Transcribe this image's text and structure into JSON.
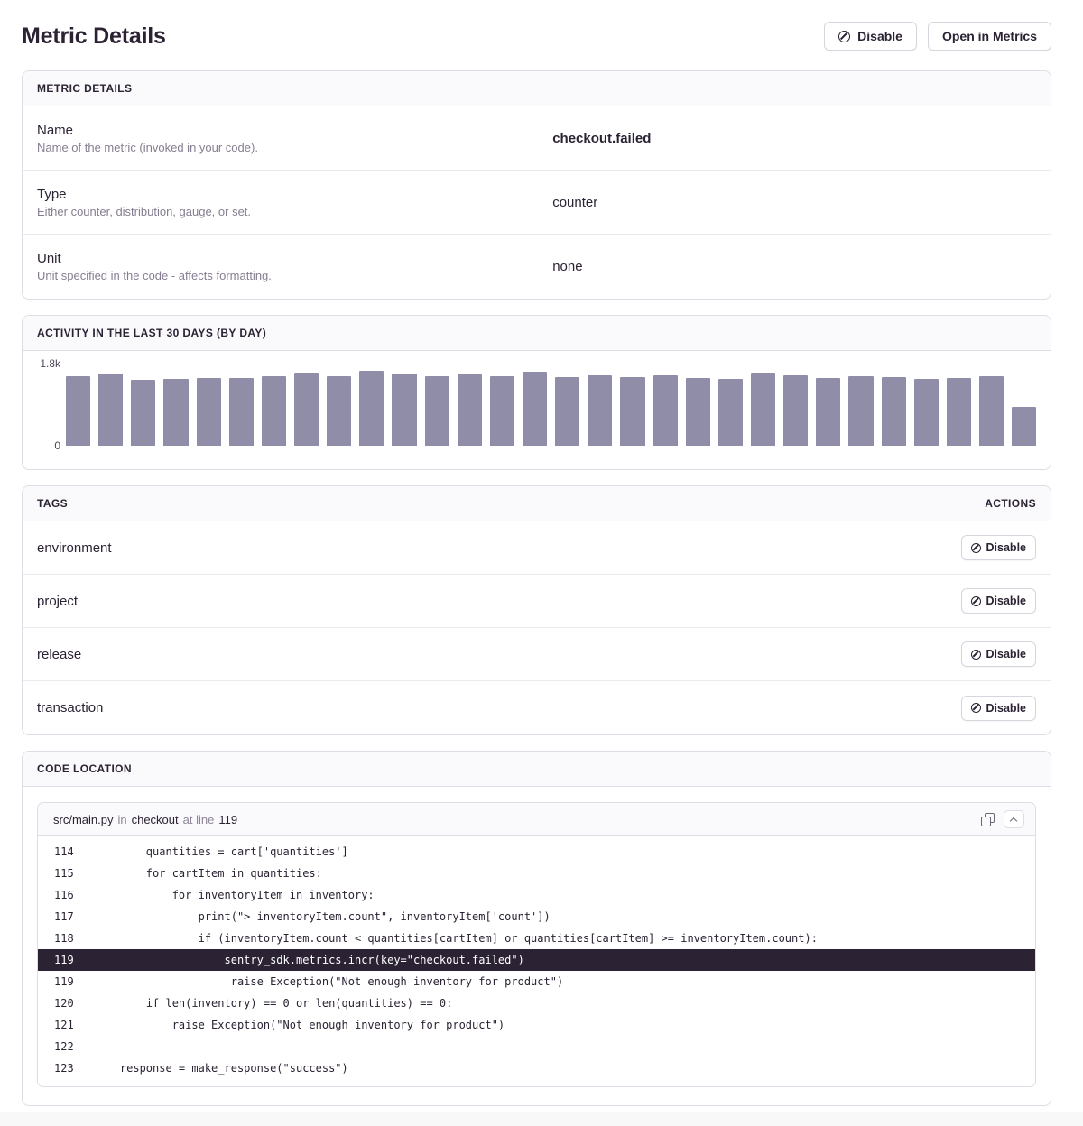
{
  "page": {
    "title": "Metric Details"
  },
  "toolbar": {
    "disable_label": "Disable",
    "open_in_metrics_label": "Open in Metrics"
  },
  "details_panel": {
    "title": "METRIC DETAILS",
    "rows": [
      {
        "label": "Name",
        "description": "Name of the metric (invoked in your code).",
        "value": "checkout.failed"
      },
      {
        "label": "Type",
        "description": "Either counter, distribution, gauge, or set.",
        "value": "counter"
      },
      {
        "label": "Unit",
        "description": "Unit specified in the code - affects formatting.",
        "value": "none"
      }
    ]
  },
  "activity_panel": {
    "title": "ACTIVITY IN THE LAST 30 DAYS (BY DAY)",
    "y_axis_max_label": "1.8k",
    "y_axis_min_label": "0"
  },
  "chart_data": {
    "type": "bar",
    "title": "Activity in the last 30 days (by day)",
    "values": [
      1520,
      1575,
      1440,
      1460,
      1475,
      1490,
      1515,
      1610,
      1520,
      1650,
      1575,
      1515,
      1560,
      1515,
      1620,
      1495,
      1540,
      1500,
      1540,
      1490,
      1455,
      1610,
      1540,
      1480,
      1520,
      1505,
      1455,
      1490,
      1525,
      860
    ],
    "xlabel": "",
    "ylabel": "",
    "ylim": [
      0,
      1800
    ],
    "y_tick_labels": [
      "0",
      "1.8k"
    ],
    "grid": false,
    "legend": false,
    "bar_color": "#8f8da8"
  },
  "tags_panel": {
    "title": "TAGS",
    "actions_label": "ACTIONS",
    "disable_label": "Disable",
    "tags": [
      "environment",
      "project",
      "release",
      "transaction"
    ]
  },
  "code_panel": {
    "title": "CODE LOCATION",
    "file_path": "src/main.py",
    "in_word": "in",
    "function_name": "checkout",
    "at_line_words": "at line",
    "line_number": "119",
    "lines": [
      {
        "no": "114",
        "code": "        quantities = cart['quantities']"
      },
      {
        "no": "115",
        "code": "        for cartItem in quantities:"
      },
      {
        "no": "116",
        "code": "            for inventoryItem in inventory:"
      },
      {
        "no": "117",
        "code": "                print(\"> inventoryItem.count\", inventoryItem['count'])"
      },
      {
        "no": "118",
        "code": "                if (inventoryItem.count < quantities[cartItem] or quantities[cartItem] >= inventoryItem.count):"
      },
      {
        "no": "119",
        "code": "                    sentry_sdk.metrics.incr(key=\"checkout.failed\")"
      },
      {
        "no": "119",
        "code": "                     raise Exception(\"Not enough inventory for product\")"
      },
      {
        "no": "120",
        "code": "        if len(inventory) == 0 or len(quantities) == 0:"
      },
      {
        "no": "121",
        "code": "            raise Exception(\"Not enough inventory for product\")"
      },
      {
        "no": "122",
        "code": ""
      },
      {
        "no": "123",
        "code": "    response = make_response(\"success\")"
      }
    ]
  }
}
